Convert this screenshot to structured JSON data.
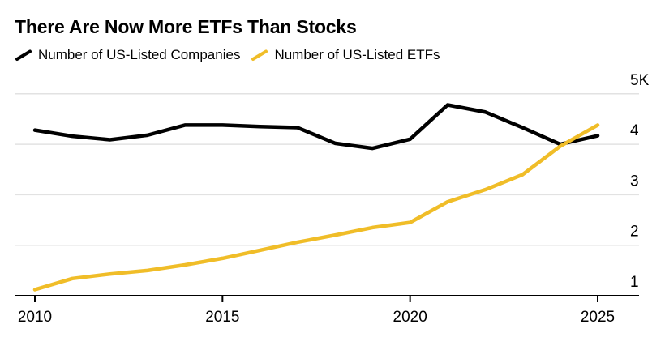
{
  "header": {
    "title": "There Are Now More ETFs Than Stocks"
  },
  "legend": [
    {
      "label": "Number of US-Listed Companies",
      "color": "#000000"
    },
    {
      "label": "Number of US-Listed ETFs",
      "color": "#F0BD28"
    }
  ],
  "chart_data": {
    "type": "line",
    "title": "There Are Now More ETFs Than Stocks",
    "units": "thousands",
    "x": [
      2010,
      2011,
      2012,
      2013,
      2014,
      2015,
      2016,
      2017,
      2018,
      2019,
      2020,
      2021,
      2022,
      2023,
      2024,
      2025
    ],
    "series": [
      {
        "name": "Number of US-Listed Companies",
        "color": "#000000",
        "values": [
          4.28,
          4.16,
          4.09,
          4.18,
          4.38,
          4.38,
          4.35,
          4.33,
          4.02,
          3.92,
          4.1,
          4.78,
          4.64,
          4.33,
          4.0,
          4.17
        ]
      },
      {
        "name": "Number of US-Listed ETFs",
        "color": "#F0BD28",
        "values": [
          1.12,
          1.34,
          1.43,
          1.5,
          1.61,
          1.74,
          1.9,
          2.06,
          2.2,
          2.35,
          2.45,
          2.86,
          3.1,
          3.4,
          3.96,
          4.38
        ]
      }
    ],
    "xlabel": "",
    "ylabel": "",
    "xlim": [
      2010,
      2025
    ],
    "ylim": [
      1,
      5
    ],
    "x_ticks": [
      {
        "value": 2010,
        "label": "2010"
      },
      {
        "value": 2015,
        "label": "2015"
      },
      {
        "value": 2020,
        "label": "2020"
      },
      {
        "value": 2025,
        "label": "2025"
      }
    ],
    "y_ticks": [
      {
        "value": 5,
        "label": "5K"
      },
      {
        "value": 4,
        "label": "4"
      },
      {
        "value": 3,
        "label": "3"
      },
      {
        "value": 2,
        "label": "2"
      },
      {
        "value": 1,
        "label": "1"
      }
    ],
    "grid": "horizontal",
    "y_axis_side": "right",
    "legend_position": "top-left",
    "style": {
      "background": "#FFFFFF",
      "gridline_color": "#E2E2E2",
      "axis_color": "#000000",
      "text_color": "#000000"
    }
  }
}
